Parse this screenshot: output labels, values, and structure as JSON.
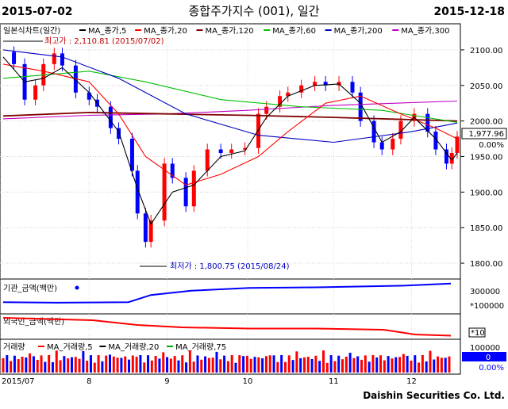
{
  "header": {
    "start_date": "2015-07-02",
    "title": "종합주가지수 (001), 일간",
    "end_date": "2015-12-18"
  },
  "footer": {
    "credit": "Daishin Securities Co. Ltd."
  },
  "colors": {
    "up": "#ff0000",
    "down": "#0000ff",
    "ma5": "#000000",
    "ma20": "#ff0000",
    "ma60": "#00c000",
    "ma120": "#800000",
    "ma200": "#0000c0",
    "ma300": "#c000c0",
    "institution": "#0000ff",
    "foreign": "#ff0000"
  },
  "chart_data": [
    {
      "type": "candlestick",
      "panel": "price",
      "title": "일본식차트(일간)",
      "legend": [
        "MA_종가,5",
        "MA_종가,20",
        "MA_종가,120",
        "MA_종가,60",
        "MA_종가,200",
        "MA_종가,300"
      ],
      "x_ticks": [
        "2015/07",
        "8",
        "9",
        "10",
        "11",
        "12"
      ],
      "y_ticks": [
        1800,
        1850,
        1900,
        1950,
        2000,
        2050,
        2100
      ],
      "ylim": [
        1780,
        2130
      ],
      "y_tick_labels": [
        "1800.00",
        "1850.00",
        "1900.00",
        "1950.00",
        "2000.00",
        "2050.00",
        "2100.00"
      ],
      "high_annotation": "최고가 : 2,110.81 (2015/07/02)",
      "low_annotation": "최저가 : 1,800.75 (2015/08/24)",
      "last_value": "1,977.96",
      "change_pct": "0.00%",
      "x_start": "2015-07-02",
      "x_end": "2015-12-18",
      "x_tick_dates": [
        "2015-07-01",
        "2015-08-03",
        "2015-09-01",
        "2015-10-01",
        "2015-11-02",
        "2015-12-01"
      ],
      "closes": [
        [
          "2015-07-02",
          2097
        ],
        [
          "2015-07-06",
          2080
        ],
        [
          "2015-07-10",
          2030
        ],
        [
          "2015-07-14",
          2050
        ],
        [
          "2015-07-17",
          2080
        ],
        [
          "2015-07-21",
          2095
        ],
        [
          "2015-07-24",
          2078
        ],
        [
          "2015-07-29",
          2040
        ],
        [
          "2015-08-03",
          2030
        ],
        [
          "2015-08-06",
          2020
        ],
        [
          "2015-08-11",
          1990
        ],
        [
          "2015-08-14",
          1975
        ],
        [
          "2015-08-19",
          1930
        ],
        [
          "2015-08-21",
          1870
        ],
        [
          "2015-08-24",
          1830
        ],
        [
          "2015-08-26",
          1860
        ],
        [
          "2015-08-31",
          1940
        ],
        [
          "2015-09-03",
          1920
        ],
        [
          "2015-09-08",
          1880
        ],
        [
          "2015-09-11",
          1930
        ],
        [
          "2015-09-16",
          1960
        ],
        [
          "2015-09-21",
          1955
        ],
        [
          "2015-09-25",
          1960
        ],
        [
          "2015-09-30",
          1962
        ],
        [
          "2015-10-05",
          2010
        ],
        [
          "2015-10-08",
          2020
        ],
        [
          "2015-10-13",
          2035
        ],
        [
          "2015-10-16",
          2040
        ],
        [
          "2015-10-21",
          2050
        ],
        [
          "2015-10-26",
          2055
        ],
        [
          "2015-10-30",
          2050
        ],
        [
          "2015-11-04",
          2055
        ],
        [
          "2015-11-09",
          2040
        ],
        [
          "2015-11-12",
          2000
        ],
        [
          "2015-11-17",
          1970
        ],
        [
          "2015-11-20",
          1960
        ],
        [
          "2015-11-24",
          1975
        ],
        [
          "2015-11-27",
          2000
        ],
        [
          "2015-12-02",
          2010
        ],
        [
          "2015-12-07",
          1985
        ],
        [
          "2015-12-10",
          1960
        ],
        [
          "2015-12-14",
          1940
        ],
        [
          "2015-12-16",
          1955
        ],
        [
          "2015-12-18",
          1978
        ]
      ],
      "ma5": [
        [
          "2015-07-02",
          2090
        ],
        [
          "2015-07-10",
          2055
        ],
        [
          "2015-07-17",
          2060
        ],
        [
          "2015-07-24",
          2075
        ],
        [
          "2015-08-03",
          2040
        ],
        [
          "2015-08-14",
          1985
        ],
        [
          "2015-08-21",
          1905
        ],
        [
          "2015-08-26",
          1855
        ],
        [
          "2015-09-03",
          1900
        ],
        [
          "2015-09-11",
          1910
        ],
        [
          "2015-09-21",
          1950
        ],
        [
          "2015-09-30",
          1958
        ],
        [
          "2015-10-08",
          2005
        ],
        [
          "2015-10-16",
          2035
        ],
        [
          "2015-10-26",
          2050
        ],
        [
          "2015-11-04",
          2052
        ],
        [
          "2015-11-12",
          2025
        ],
        [
          "2015-11-20",
          1970
        ],
        [
          "2015-11-27",
          1985
        ],
        [
          "2015-12-02",
          2005
        ],
        [
          "2015-12-10",
          1975
        ],
        [
          "2015-12-16",
          1945
        ],
        [
          "2015-12-18",
          1955
        ]
      ],
      "ma20": [
        [
          "2015-07-02",
          2080
        ],
        [
          "2015-07-17",
          2070
        ],
        [
          "2015-08-03",
          2055
        ],
        [
          "2015-08-14",
          2010
        ],
        [
          "2015-08-24",
          1950
        ],
        [
          "2015-09-08",
          1910
        ],
        [
          "2015-09-21",
          1925
        ],
        [
          "2015-10-05",
          1950
        ],
        [
          "2015-10-16",
          1985
        ],
        [
          "2015-10-30",
          2025
        ],
        [
          "2015-11-12",
          2035
        ],
        [
          "2015-11-27",
          2010
        ],
        [
          "2015-12-10",
          1990
        ],
        [
          "2015-12-18",
          1975
        ]
      ],
      "ma60": [
        [
          "2015-07-02",
          2060
        ],
        [
          "2015-08-03",
          2070
        ],
        [
          "2015-08-24",
          2055
        ],
        [
          "2015-09-21",
          2030
        ],
        [
          "2015-10-21",
          2020
        ],
        [
          "2015-11-20",
          2015
        ],
        [
          "2015-12-18",
          1998
        ]
      ],
      "ma120": [
        [
          "2015-07-02",
          2007
        ],
        [
          "2015-08-03",
          2012
        ],
        [
          "2015-09-01",
          2010
        ],
        [
          "2015-10-01",
          2008
        ],
        [
          "2015-11-02",
          2005
        ],
        [
          "2015-12-18",
          2000
        ]
      ],
      "ma200": [
        [
          "2015-07-02",
          2100
        ],
        [
          "2015-07-24",
          2090
        ],
        [
          "2015-08-14",
          2060
        ],
        [
          "2015-09-08",
          2010
        ],
        [
          "2015-10-05",
          1980
        ],
        [
          "2015-11-02",
          1970
        ],
        [
          "2015-12-01",
          1985
        ],
        [
          "2015-12-18",
          1997
        ]
      ],
      "ma300": [
        [
          "2015-07-02",
          2003
        ],
        [
          "2015-08-03",
          2008
        ],
        [
          "2015-09-01",
          2010
        ],
        [
          "2015-10-01",
          2015
        ],
        [
          "2015-11-02",
          2022
        ],
        [
          "2015-12-18",
          2028
        ]
      ]
    },
    {
      "type": "line",
      "panel": "institution",
      "title": "기관_금액(백만)",
      "y_ticks": [
        "300000",
        "*100000"
      ],
      "series": [
        [
          0,
          0.3
        ],
        [
          0.12,
          0.28
        ],
        [
          0.28,
          0.3
        ],
        [
          0.33,
          0.55
        ],
        [
          0.42,
          0.7
        ],
        [
          0.55,
          0.8
        ],
        [
          0.7,
          0.82
        ],
        [
          0.9,
          0.88
        ],
        [
          1,
          0.95
        ]
      ]
    },
    {
      "type": "line",
      "panel": "foreign",
      "title": "외국인_금액(백만)",
      "y_ticks": [
        "*10"
      ],
      "series": [
        [
          0,
          0.9
        ],
        [
          0.2,
          0.8
        ],
        [
          0.3,
          0.6
        ],
        [
          0.4,
          0.5
        ],
        [
          0.55,
          0.45
        ],
        [
          0.7,
          0.45
        ],
        [
          0.85,
          0.4
        ],
        [
          0.92,
          0.2
        ],
        [
          1,
          0.15
        ]
      ]
    },
    {
      "type": "bar",
      "panel": "volume",
      "title": "거래량",
      "legend": [
        "MA_거래량,5",
        "MA_거래량,20",
        "MA_거래량,75"
      ],
      "y_ticks": [
        "100000"
      ],
      "last_value": "0",
      "change_pct": "0.00%"
    }
  ]
}
